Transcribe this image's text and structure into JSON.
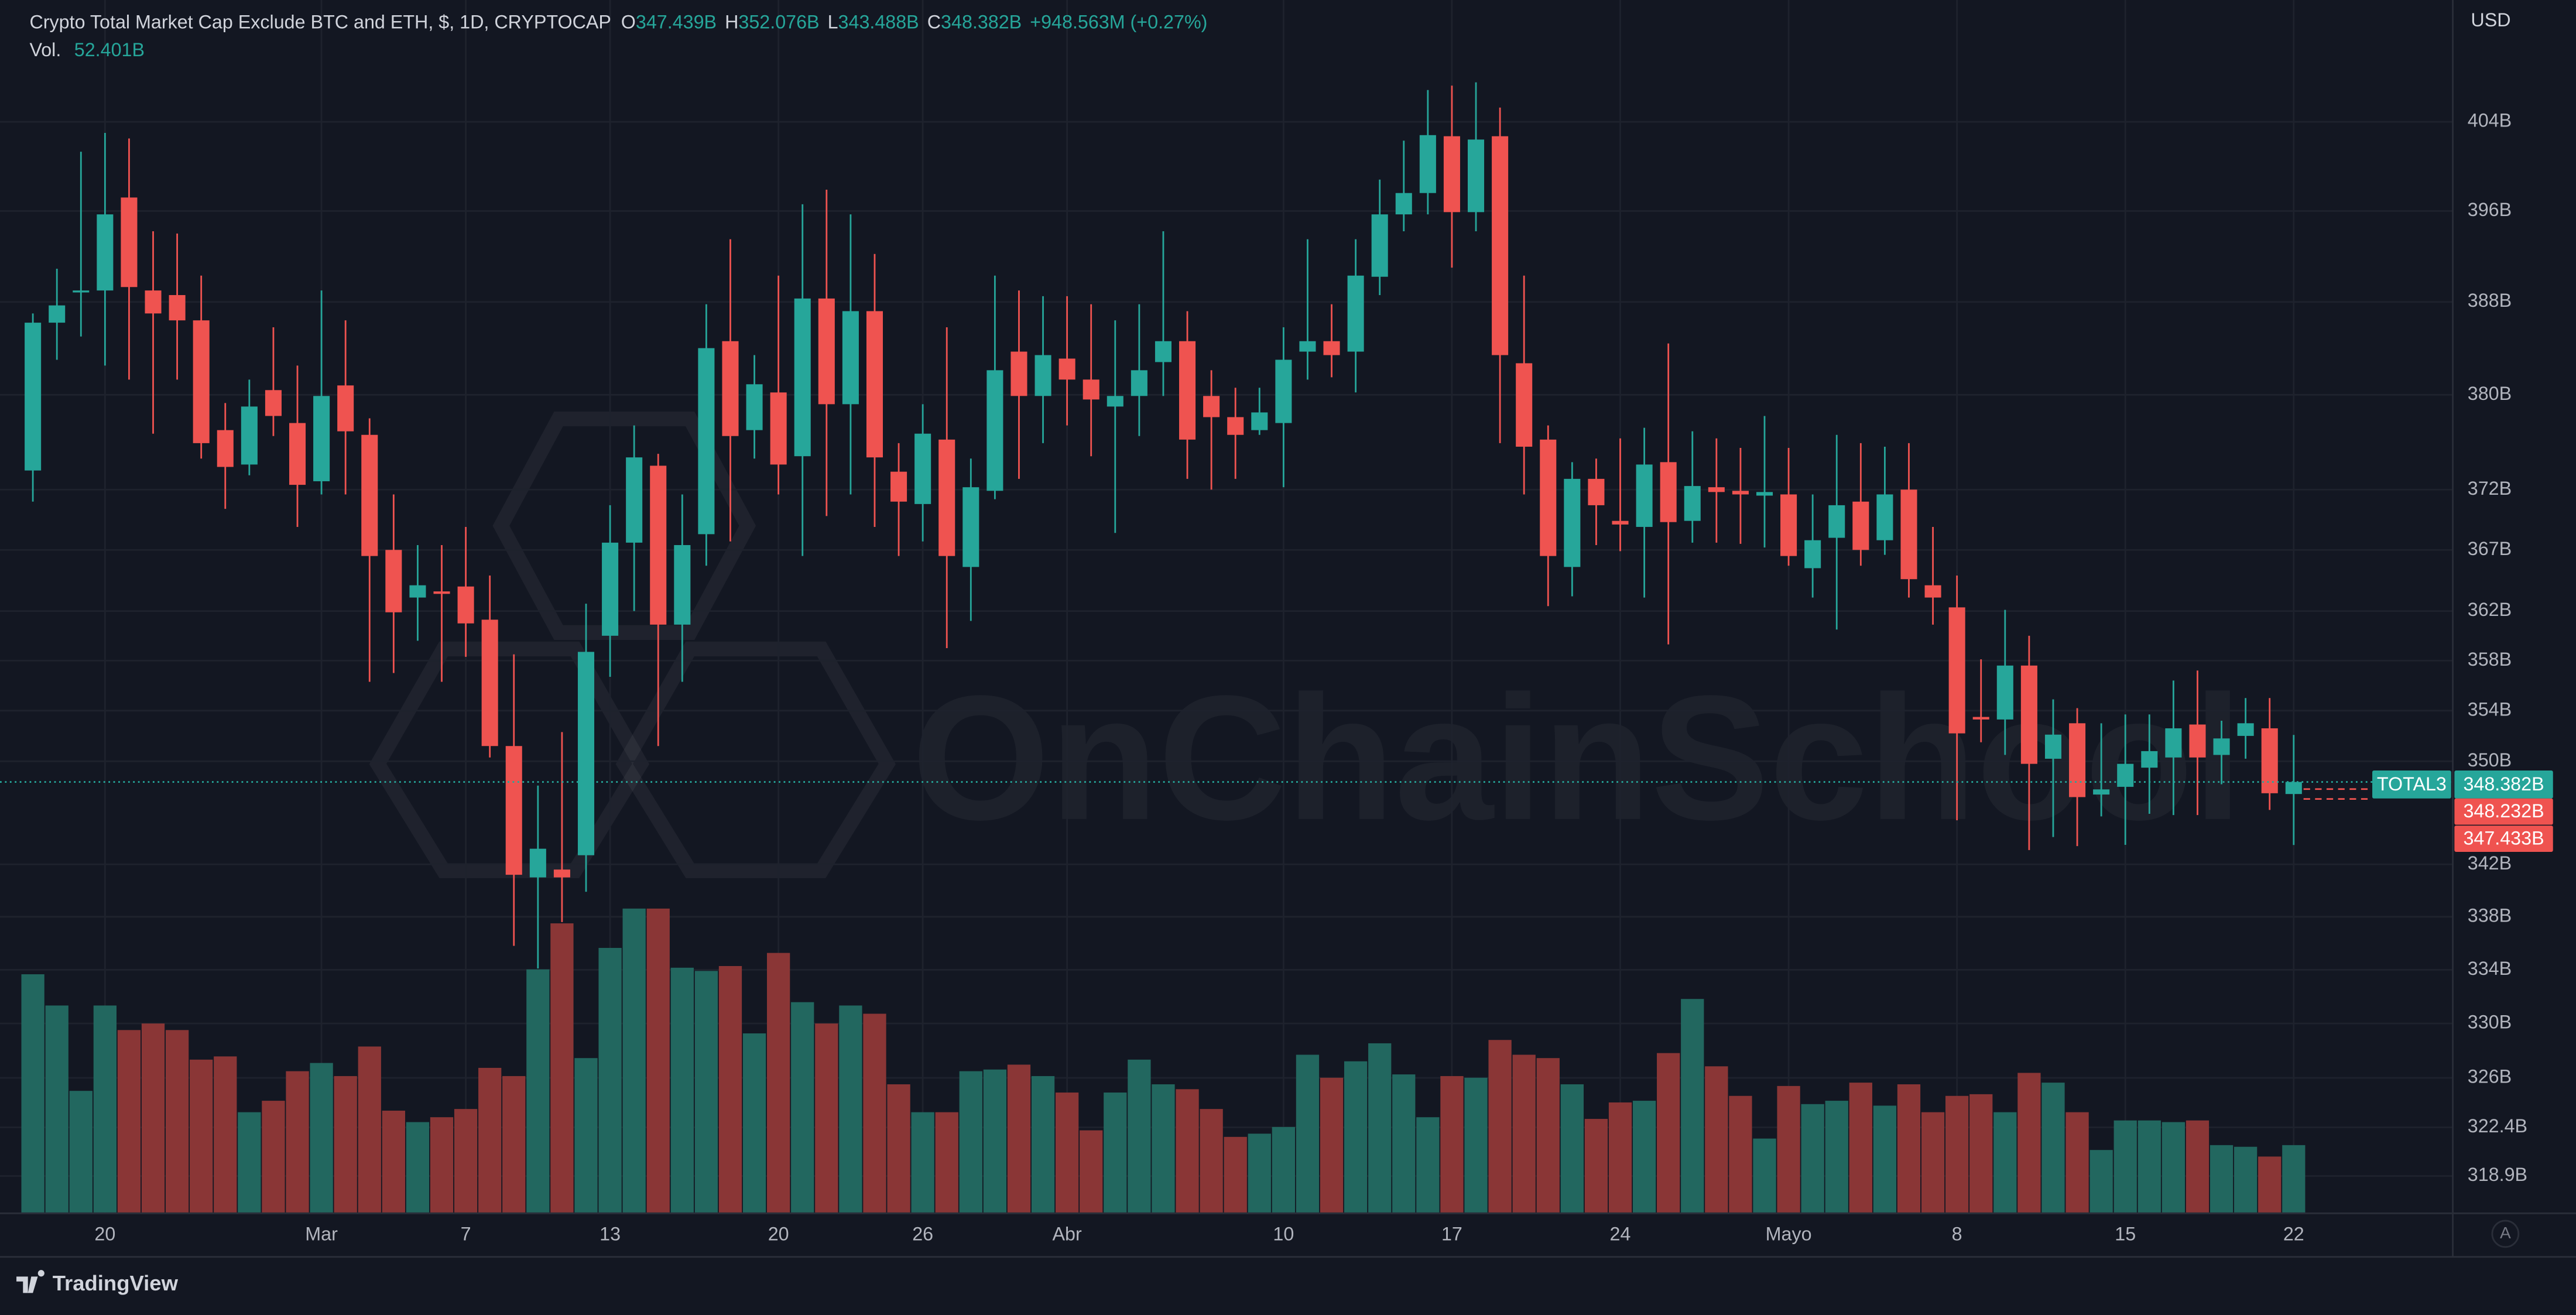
{
  "chart_data": {
    "type": "candlestick",
    "title": "Crypto Total Market Cap Exclude BTC and ETH, $, 1D, CRYPTOCAP",
    "ohlc": [
      {
        "label": "O",
        "value": "347.439B"
      },
      {
        "label": "H",
        "value": "352.076B"
      },
      {
        "label": "L",
        "value": "343.488B"
      },
      {
        "label": "C",
        "value": "348.382B"
      }
    ],
    "change": "+948.563M (+0.27%)",
    "volume_label": "Vol.",
    "volume_value": "52.401B",
    "currency": "USD",
    "symbol": "TOTAL3",
    "last_price": "348.382B",
    "price_labels": [
      "348.232B",
      "347.433B"
    ],
    "watermark": "OnChainSchool",
    "brand": "TradingView",
    "scale_button": "A",
    "log_scale": true,
    "grid": true,
    "up_color": "#26a69a",
    "down_color": "#ef5350",
    "volume_up_color": "#22675f",
    "volume_down_color": "#8a3636",
    "categories": [
      null,
      null,
      null,
      "20",
      null,
      null,
      null,
      null,
      null,
      null,
      null,
      null,
      "Mar",
      null,
      null,
      null,
      null,
      null,
      "7",
      null,
      null,
      null,
      null,
      null,
      "13",
      null,
      null,
      null,
      null,
      null,
      null,
      "20",
      null,
      null,
      null,
      null,
      null,
      "26",
      null,
      null,
      null,
      null,
      null,
      "Abr",
      null,
      null,
      null,
      null,
      null,
      null,
      null,
      null,
      "10",
      null,
      null,
      null,
      null,
      null,
      null,
      "17",
      null,
      null,
      null,
      null,
      null,
      null,
      "24",
      null,
      null,
      null,
      null,
      null,
      null,
      "Mayo",
      null,
      null,
      null,
      null,
      null,
      null,
      "8",
      null,
      null,
      null,
      null,
      null,
      null,
      "15",
      null,
      null,
      null,
      null,
      null,
      null,
      "22"
    ],
    "open": [
      373.6,
      386.2,
      388.9,
      389.0,
      397.2,
      389.0,
      388.6,
      386.4,
      377.0,
      374.1,
      380.4,
      377.6,
      372.7,
      380.8,
      376.6,
      367.0,
      363.1,
      363.6,
      364.0,
      361.3,
      351.2,
      341.0,
      341.6,
      342.7,
      360.0,
      367.6,
      374.0,
      360.9,
      368.3,
      384.6,
      377.0,
      380.2,
      374.8,
      388.3,
      379.2,
      387.2,
      373.5,
      370.8,
      376.2,
      365.6,
      371.9,
      383.7,
      379.9,
      383.1,
      381.3,
      379.0,
      379.9,
      382.8,
      384.6,
      379.9,
      378.1,
      377.0,
      377.6,
      383.7,
      384.6,
      383.7,
      390.2,
      395.7,
      397.6,
      402.7,
      395.9,
      402.7,
      382.7,
      376.2,
      365.6,
      372.9,
      369.4,
      368.9,
      374.3,
      369.4,
      372.2,
      371.9,
      371.5,
      371.6,
      365.5,
      368.0,
      371.0,
      367.8,
      372.0,
      364.1,
      362.3,
      353.5,
      353.3,
      357.6,
      350.2,
      353.0,
      347.4,
      348.0,
      349.5,
      350.3,
      352.9,
      350.5,
      352.0,
      352.6,
      347.439
    ],
    "high": [
      387.0,
      390.9,
      401.3,
      403.0,
      402.5,
      394.2,
      394.0,
      390.3,
      379.3,
      381.3,
      385.8,
      382.5,
      389.0,
      386.4,
      378.0,
      371.6,
      367.4,
      367.4,
      368.9,
      364.9,
      358.5,
      348.1,
      352.3,
      362.6,
      370.7,
      377.4,
      375.0,
      371.6,
      387.8,
      393.5,
      383.4,
      390.3,
      396.6,
      397.9,
      395.7,
      392.2,
      375.9,
      379.2,
      385.8,
      374.6,
      390.3,
      389.0,
      388.5,
      388.5,
      387.8,
      386.4,
      387.8,
      394.2,
      387.2,
      382.1,
      380.6,
      380.6,
      385.8,
      393.5,
      387.8,
      393.5,
      398.8,
      402.3,
      406.9,
      407.3,
      407.6,
      405.3,
      390.3,
      377.4,
      374.3,
      374.6,
      376.3,
      377.2,
      384.4,
      376.9,
      376.3,
      375.5,
      378.2,
      375.5,
      371.6,
      376.6,
      375.9,
      375.6,
      375.9,
      368.9,
      364.9,
      358.1,
      362.1,
      360.0,
      354.9,
      354.2,
      353.0,
      353.7,
      353.7,
      356.4,
      357.2,
      353.2,
      355.0,
      355.0,
      352.076
    ],
    "low": [
      371.0,
      383.0,
      385.0,
      382.5,
      381.3,
      376.7,
      381.3,
      374.6,
      370.4,
      373.2,
      376.5,
      368.9,
      371.6,
      371.6,
      356.3,
      357.0,
      359.6,
      356.3,
      358.3,
      350.3,
      335.8,
      334.1,
      337.6,
      339.9,
      356.7,
      362.0,
      351.2,
      356.3,
      365.7,
      367.7,
      374.6,
      371.6,
      366.5,
      369.8,
      371.6,
      368.9,
      366.5,
      367.7,
      359.0,
      361.2,
      371.2,
      372.9,
      375.9,
      377.4,
      374.8,
      368.4,
      376.5,
      379.9,
      372.9,
      372.0,
      372.9,
      376.6,
      372.2,
      381.3,
      381.5,
      380.2,
      388.6,
      394.2,
      395.7,
      391.0,
      394.2,
      375.9,
      371.6,
      362.4,
      363.2,
      367.4,
      366.9,
      363.1,
      359.3,
      367.6,
      367.6,
      367.5,
      367.2,
      365.7,
      363.1,
      360.5,
      365.7,
      366.6,
      363.1,
      360.9,
      345.4,
      351.5,
      350.5,
      343.1,
      344.1,
      343.4,
      345.7,
      343.5,
      345.9,
      345.8,
      345.8,
      348.2,
      350.2,
      346.2,
      343.488
    ],
    "close": [
      386.2,
      387.7,
      389.0,
      395.7,
      389.3,
      387.0,
      386.4,
      375.9,
      373.9,
      379.0,
      378.2,
      372.4,
      379.9,
      376.9,
      366.5,
      361.9,
      364.1,
      363.4,
      361.0,
      351.2,
      341.2,
      343.2,
      341.0,
      358.7,
      367.6,
      374.7,
      360.9,
      367.4,
      384.0,
      376.5,
      380.9,
      374.1,
      388.3,
      379.2,
      387.2,
      374.7,
      371.0,
      376.7,
      366.5,
      372.2,
      382.1,
      379.9,
      383.4,
      381.3,
      379.6,
      379.9,
      382.1,
      384.6,
      376.2,
      378.1,
      376.6,
      378.5,
      383.0,
      384.6,
      383.4,
      390.3,
      395.7,
      397.6,
      402.8,
      395.9,
      402.4,
      383.4,
      375.6,
      366.5,
      372.9,
      370.7,
      369.1,
      374.1,
      369.3,
      372.3,
      371.8,
      371.6,
      371.8,
      366.5,
      367.8,
      370.7,
      367.0,
      371.6,
      364.6,
      363.1,
      352.2,
      353.3,
      357.6,
      349.8,
      352.1,
      347.2,
      347.8,
      349.8,
      350.8,
      352.6,
      350.3,
      351.8,
      353.0,
      347.5,
      348.382
    ],
    "volume": [
      185.3,
      161.0,
      94.6,
      161.0,
      141.9,
      147.0,
      141.9,
      118.9,
      121.4,
      78.0,
      86.9,
      109.9,
      116.3,
      106.1,
      129.1,
      79.2,
      70.3,
      74.1,
      80.5,
      112.5,
      106.1,
      189.1,
      224.9,
      120.1,
      205.8,
      236.4,
      236.4,
      190.4,
      187.9,
      191.7,
      139.3,
      201.9,
      163.6,
      147.0,
      161.0,
      154.6,
      99.7,
      78.0,
      78.0,
      109.9,
      111.2,
      115.0,
      106.1,
      93.3,
      63.9,
      93.3,
      118.9,
      99.7,
      95.9,
      80.5,
      58.8,
      61.3,
      66.5,
      122.7,
      104.8,
      117.6,
      131.6,
      107.4,
      74.1,
      106.1,
      104.8,
      134.2,
      122.7,
      120.1,
      99.7,
      72.8,
      85.6,
      86.9,
      124.0,
      166.1,
      113.7,
      90.7,
      57.5,
      98.4,
      84.3,
      86.9,
      101.0,
      83.1,
      99.7,
      78.0,
      90.7,
      92.0,
      78.0,
      108.6,
      101.0,
      78.0,
      48.6,
      71.6,
      71.6,
      70.3,
      71.6,
      52.4,
      51.1,
      43.5,
      52.401
    ],
    "ylim": [
      316.3,
      415.2
    ],
    "yticks": [
      {
        "value": 404,
        "label": "404B"
      },
      {
        "value": 396,
        "label": "396B"
      },
      {
        "value": 388,
        "label": "388B"
      },
      {
        "value": 380,
        "label": "380B"
      },
      {
        "value": 372,
        "label": "372B"
      },
      {
        "value": 367,
        "label": "367B"
      },
      {
        "value": 362,
        "label": "362B"
      },
      {
        "value": 358,
        "label": "358B"
      },
      {
        "value": 354,
        "label": "354B"
      },
      {
        "value": 350,
        "label": "350B"
      },
      {
        "value": 342,
        "label": "342B"
      },
      {
        "value": 338,
        "label": "338B"
      },
      {
        "value": 334,
        "label": "334B"
      },
      {
        "value": 330,
        "label": "330B"
      },
      {
        "value": 326,
        "label": "326B"
      },
      {
        "value": 322.4,
        "label": "322.4B"
      },
      {
        "value": 318.9,
        "label": "318.9B"
      }
    ]
  }
}
